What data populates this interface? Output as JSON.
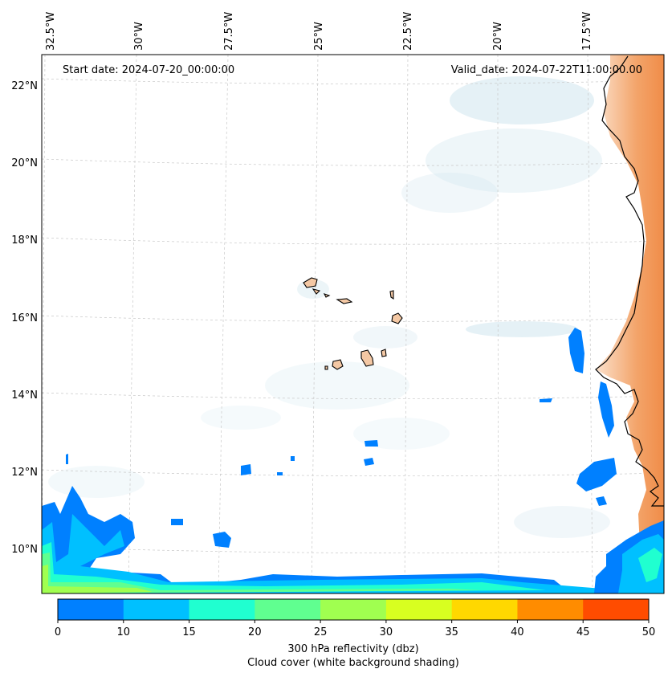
{
  "header": {
    "start_date": "Start date: 2024-07-20_00:00:00",
    "valid_date": "Valid_date: 2024-07-22T11:00:00.00"
  },
  "longitude_ticks": [
    "32.5°W",
    "30°W",
    "27.5°W",
    "25°W",
    "22.5°W",
    "20°W",
    "17.5°W"
  ],
  "latitude_ticks": [
    "22°N",
    "20°N",
    "18°N",
    "16°N",
    "14°N",
    "12°N",
    "10°N"
  ],
  "colorbar": {
    "ticks": [
      "0",
      "10",
      "15",
      "20",
      "25",
      "30",
      "35",
      "40",
      "45",
      "50"
    ],
    "colors": [
      "#0080ff",
      "#00c0ff",
      "#20ffd0",
      "#60ff90",
      "#a0ff50",
      "#d8ff20",
      "#ffd800",
      "#ff8c00",
      "#ff4c00"
    ],
    "label_line1": "300 hPa reflectivity (dbz)",
    "label_line2": "Cloud cover (white background shading)"
  },
  "colors": {
    "land": "#f4c8a4",
    "land_strong": "#f3a46a",
    "cloud": "#cfe6ee",
    "grid": "#c8c8c8"
  }
}
